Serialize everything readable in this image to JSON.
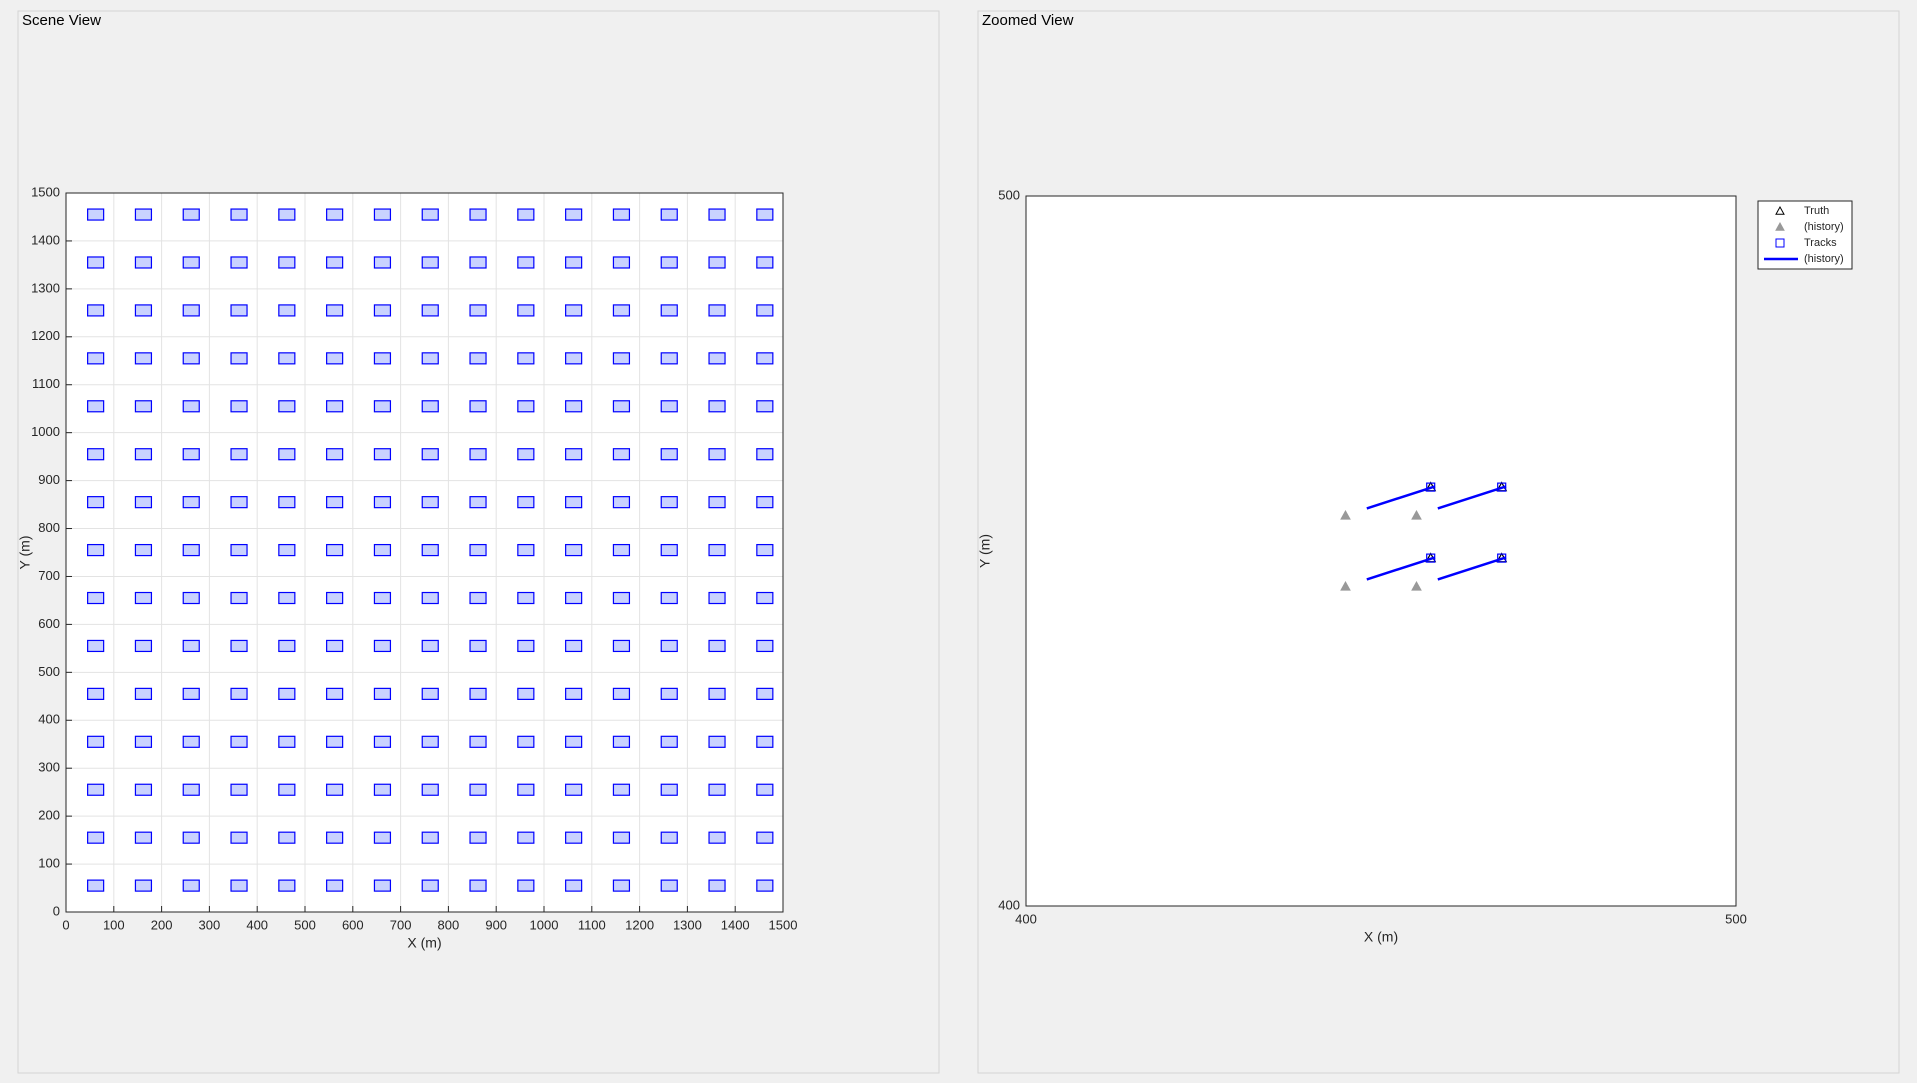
{
  "chart_data": [
    {
      "type": "scatter",
      "title": "Scene View",
      "xlabel": "X (m)",
      "ylabel": "Y (m)",
      "xlim": [
        0,
        1500
      ],
      "ylim": [
        0,
        1500
      ],
      "xticks": [
        0,
        100,
        200,
        300,
        400,
        500,
        600,
        700,
        800,
        900,
        1000,
        1100,
        1200,
        1300,
        1400,
        1500
      ],
      "yticks": [
        0,
        100,
        200,
        300,
        400,
        500,
        600,
        700,
        800,
        900,
        1000,
        1100,
        1200,
        1300,
        1400,
        1500
      ],
      "grid": true,
      "color": "#0000ff",
      "x": [
        62,
        162,
        262,
        362,
        462,
        562,
        662,
        762,
        862,
        962,
        1062,
        1162,
        1262,
        1362,
        1462,
        62,
        162,
        262,
        362,
        462,
        562,
        662,
        762,
        862,
        962,
        1062,
        1162,
        1262,
        1362,
        1462,
        62,
        162,
        262,
        362,
        462,
        562,
        662,
        762,
        862,
        962,
        1062,
        1162,
        1262,
        1362,
        1462,
        62,
        162,
        262,
        362,
        462,
        562,
        662,
        762,
        862,
        962,
        1062,
        1162,
        1262,
        1362,
        1462,
        62,
        162,
        262,
        362,
        462,
        562,
        662,
        762,
        862,
        962,
        1062,
        1162,
        1262,
        1362,
        1462,
        62,
        162,
        262,
        362,
        462,
        562,
        662,
        762,
        862,
        962,
        1062,
        1162,
        1262,
        1362,
        1462,
        62,
        162,
        262,
        362,
        462,
        562,
        662,
        762,
        862,
        962,
        1062,
        1162,
        1262,
        1362,
        1462,
        62,
        162,
        262,
        362,
        462,
        562,
        662,
        762,
        862,
        962,
        1062,
        1162,
        1262,
        1362,
        1462,
        62,
        162,
        262,
        362,
        462,
        562,
        662,
        762,
        862,
        962,
        1062,
        1162,
        1262,
        1362,
        1462,
        62,
        162,
        262,
        362,
        462,
        562,
        662,
        762,
        862,
        962,
        1062,
        1162,
        1262,
        1362,
        1462,
        62,
        162,
        262,
        362,
        462,
        562,
        662,
        762,
        862,
        962,
        1062,
        1162,
        1262,
        1362,
        1462,
        62,
        162,
        262,
        362,
        462,
        562,
        662,
        762,
        862,
        962,
        1062,
        1162,
        1262,
        1362,
        1462,
        62,
        162,
        262,
        362,
        462,
        562,
        662,
        762,
        862,
        962,
        1062,
        1162,
        1262,
        1362,
        1462,
        62,
        162,
        262,
        362,
        462,
        562,
        662,
        762,
        862,
        962,
        1062,
        1162,
        1262,
        1362,
        1462,
        62,
        162,
        262,
        362,
        462,
        562,
        662,
        762,
        862,
        962,
        1062,
        1162,
        1262,
        1362,
        1462
      ],
      "values": [
        54,
        54,
        54,
        54,
        54,
        54,
        54,
        54,
        54,
        54,
        54,
        54,
        54,
        54,
        54,
        154,
        154,
        154,
        154,
        154,
        154,
        154,
        154,
        154,
        154,
        154,
        154,
        154,
        154,
        154,
        254,
        254,
        254,
        254,
        254,
        254,
        254,
        254,
        254,
        254,
        254,
        254,
        254,
        254,
        254,
        354,
        354,
        354,
        354,
        354,
        354,
        354,
        354,
        354,
        354,
        354,
        354,
        354,
        354,
        354,
        454,
        454,
        454,
        454,
        454,
        454,
        454,
        454,
        454,
        454,
        454,
        454,
        454,
        454,
        454,
        554,
        554,
        554,
        554,
        554,
        554,
        554,
        554,
        554,
        554,
        554,
        554,
        554,
        554,
        554,
        654,
        654,
        654,
        654,
        654,
        654,
        654,
        654,
        654,
        654,
        654,
        654,
        654,
        654,
        654,
        754,
        754,
        754,
        754,
        754,
        754,
        754,
        754,
        754,
        754,
        754,
        754,
        754,
        754,
        754,
        854,
        854,
        854,
        854,
        854,
        854,
        854,
        854,
        854,
        854,
        854,
        854,
        854,
        854,
        854,
        954,
        954,
        954,
        954,
        954,
        954,
        954,
        954,
        954,
        954,
        954,
        954,
        954,
        954,
        954,
        1054,
        1054,
        1054,
        1054,
        1054,
        1054,
        1054,
        1054,
        1054,
        1054,
        1054,
        1054,
        1054,
        1054,
        1054,
        1154,
        1154,
        1154,
        1154,
        1154,
        1154,
        1154,
        1154,
        1154,
        1154,
        1154,
        1154,
        1154,
        1154,
        1154,
        1254,
        1254,
        1254,
        1254,
        1254,
        1254,
        1254,
        1254,
        1254,
        1254,
        1254,
        1254,
        1254,
        1254,
        1254,
        1354,
        1354,
        1354,
        1354,
        1354,
        1354,
        1354,
        1354,
        1354,
        1354,
        1354,
        1354,
        1354,
        1354,
        1354,
        1454,
        1454,
        1454,
        1454,
        1454,
        1454,
        1454,
        1454,
        1454,
        1454,
        1454,
        1454,
        1454,
        1454,
        1454
      ]
    },
    {
      "type": "scatter",
      "title": "Zoomed View",
      "xlabel": "X (m)",
      "ylabel": "Y (m)",
      "xlim": [
        400,
        500
      ],
      "ylim": [
        400,
        500
      ],
      "xticks": [
        400,
        500
      ],
      "yticks": [
        400,
        500
      ],
      "grid": false,
      "legend": "northeast-outside",
      "series": [
        {
          "name": "Truth",
          "color": "#000000",
          "marker": "triangle",
          "x": [
            457,
            467,
            457,
            467
          ],
          "values": [
            459,
            459,
            449,
            449
          ]
        },
        {
          "name": "(history)",
          "color": "#999999",
          "marker": "filled-triangle",
          "x": [
            445,
            455,
            445,
            455
          ],
          "values": [
            455,
            455,
            445,
            445
          ]
        },
        {
          "name": "Tracks",
          "color": "#0000ff",
          "marker": "square",
          "x": [
            457,
            467,
            457,
            467
          ],
          "values": [
            459,
            459,
            449,
            449
          ]
        },
        {
          "name": "(history)",
          "color": "#0000ff",
          "marker": "line",
          "x": [
            448,
            457.6,
            null,
            458,
            467.6,
            null,
            448,
            457.6,
            null,
            458,
            467.6
          ],
          "values": [
            456,
            459.1,
            null,
            456,
            459.1,
            null,
            446,
            449.1,
            null,
            446,
            449.1
          ]
        }
      ]
    }
  ]
}
